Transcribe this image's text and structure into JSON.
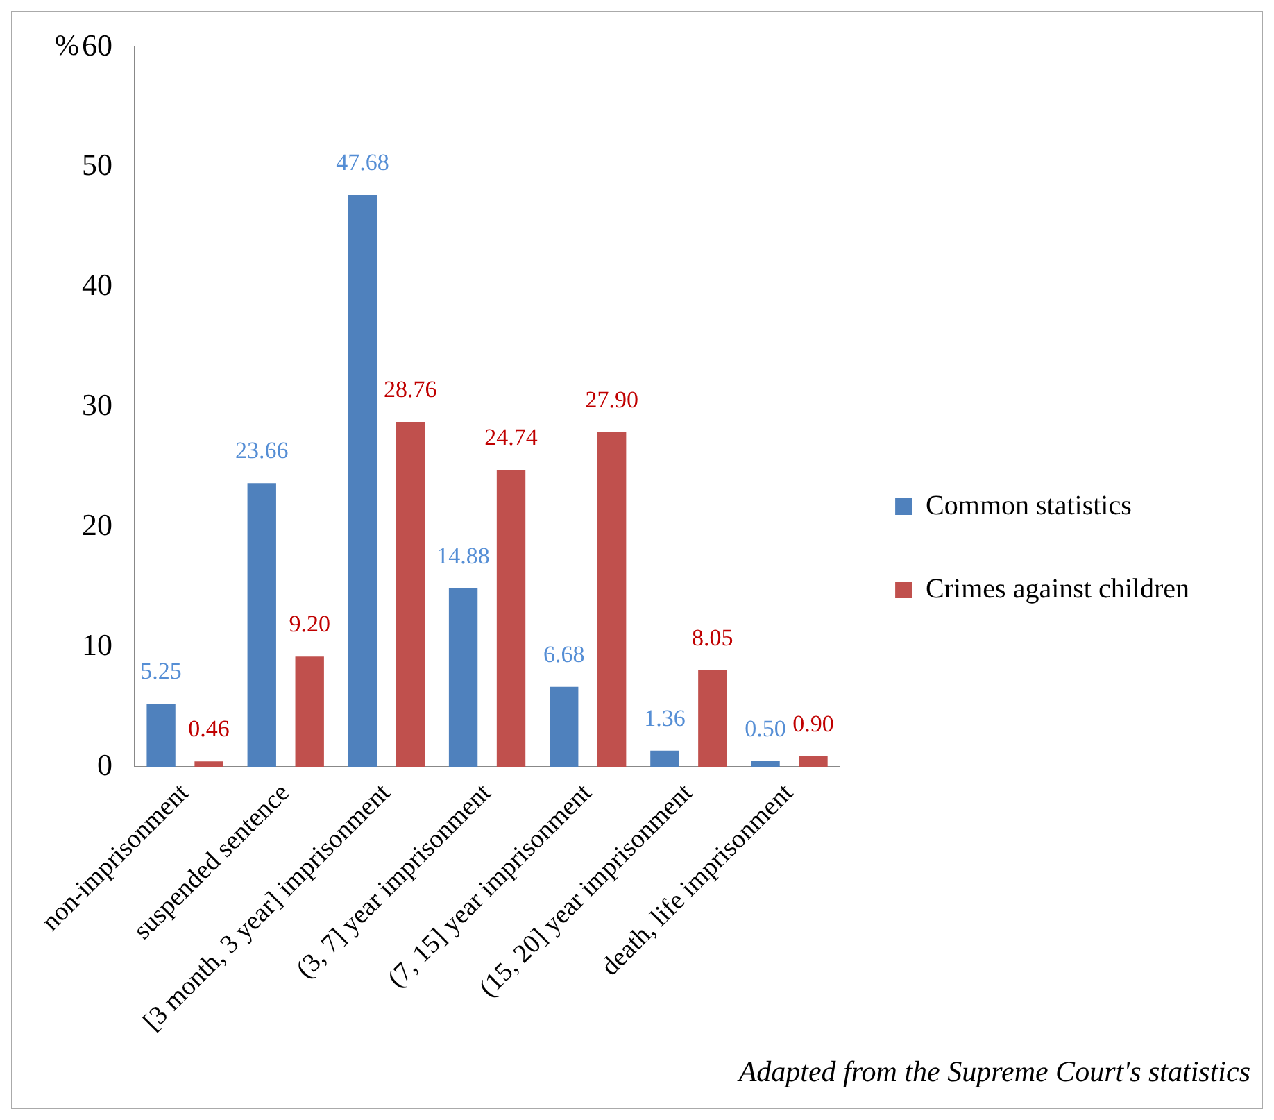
{
  "chart_data": {
    "type": "bar",
    "ylabel": "%",
    "categories": [
      "non-imprisonment",
      "suspended sentence",
      "[3 month, 3 year] imprisonment",
      "(3, 7] year imprisonment",
      "(7, 15] year imprisonment",
      "(15, 20] year imprisonment",
      "death, life imprisonment"
    ],
    "series": [
      {
        "name": "Common statistics",
        "color": "#4f81bd",
        "values": [
          5.25,
          23.66,
          47.68,
          14.88,
          6.68,
          1.36,
          0.5
        ],
        "value_labels": [
          "5.25",
          "23.66",
          "47.68",
          "14.88",
          "6.68",
          "1.36",
          "0.50"
        ]
      },
      {
        "name": "Crimes against children",
        "color": "#c0504d",
        "values": [
          0.46,
          9.2,
          28.76,
          24.74,
          27.9,
          8.05,
          0.9
        ],
        "value_labels": [
          "0.46",
          "9.20",
          "28.76",
          "24.74",
          "27.90",
          "8.05",
          "0.90"
        ]
      }
    ],
    "ylim": [
      0,
      60
    ],
    "yticks": [
      0,
      10,
      20,
      30,
      40,
      50,
      60
    ],
    "grid": false,
    "legend": "right",
    "annotations": [
      "Adapted from the Supreme Court's statistics"
    ]
  }
}
